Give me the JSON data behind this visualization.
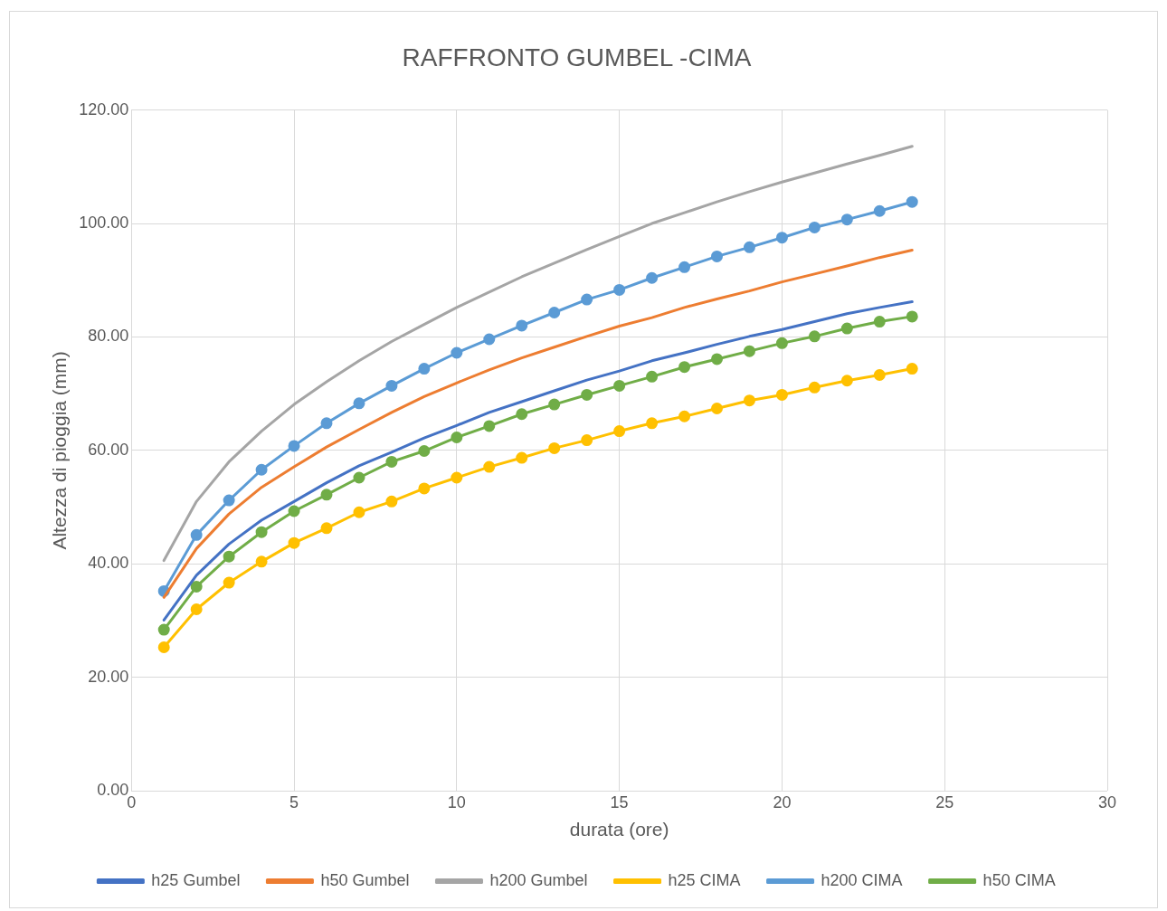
{
  "chart_data": {
    "type": "line",
    "title": "RAFFRONTO GUMBEL -CIMA",
    "xlabel": "durata (ore)",
    "ylabel": "Altezza di pioggia (mm)",
    "x": [
      1,
      2,
      3,
      4,
      5,
      6,
      7,
      8,
      9,
      10,
      11,
      12,
      13,
      14,
      15,
      16,
      17,
      18,
      19,
      20,
      21,
      22,
      23,
      24
    ],
    "xlim": [
      0,
      30
    ],
    "xticks": [
      0,
      5,
      10,
      15,
      20,
      25,
      30
    ],
    "ylim": [
      0,
      120
    ],
    "yticks": [
      {
        "value": 0,
        "label": "0.00"
      },
      {
        "value": 20,
        "label": "20.00"
      },
      {
        "value": 40,
        "label": "40.00"
      },
      {
        "value": 60,
        "label": "60.00"
      },
      {
        "value": 80,
        "label": "80.00"
      },
      {
        "value": 100,
        "label": "100.00"
      },
      {
        "value": 120,
        "label": "120.00"
      }
    ],
    "grid": true,
    "legend": "bottom",
    "series": [
      {
        "name": "h25 Gumbel",
        "color": "#4472c4",
        "marker": "none",
        "values": [
          30.1,
          38.0,
          43.5,
          47.7,
          51.0,
          54.3,
          57.3,
          59.7,
          62.2,
          64.4,
          66.7,
          68.6,
          70.5,
          72.4,
          74.0,
          75.8,
          77.2,
          78.7,
          80.1,
          81.3,
          82.7,
          84.1,
          85.2,
          86.2
        ]
      },
      {
        "name": "h50 Gumbel",
        "color": "#ed7d31",
        "marker": "none",
        "values": [
          34.1,
          42.7,
          48.8,
          53.5,
          57.1,
          60.6,
          63.7,
          66.7,
          69.5,
          71.9,
          74.2,
          76.3,
          78.2,
          80.1,
          81.9,
          83.4,
          85.2,
          86.7,
          88.1,
          89.7,
          91.1,
          92.5,
          94.0,
          95.3
        ]
      },
      {
        "name": "h200 Gumbel",
        "color": "#a5a5a5",
        "marker": "none",
        "values": [
          40.6,
          51.0,
          58.0,
          63.4,
          68.1,
          72.1,
          75.8,
          79.2,
          82.2,
          85.2,
          87.9,
          90.6,
          93.0,
          95.4,
          97.7,
          100.0,
          101.9,
          103.8,
          105.6,
          107.3,
          108.9,
          110.5,
          112.0,
          113.6
        ]
      },
      {
        "name": "h25 CIMA",
        "color": "#ffc000",
        "marker": "circle",
        "values": [
          25.3,
          32.0,
          36.7,
          40.4,
          43.7,
          46.3,
          49.1,
          51.0,
          53.3,
          55.2,
          57.1,
          58.7,
          60.4,
          61.8,
          63.4,
          64.8,
          66.0,
          67.4,
          68.8,
          69.8,
          71.1,
          72.3,
          73.3,
          74.4
        ]
      },
      {
        "name": "h200 CIMA",
        "color": "#5b9bd5",
        "marker": "circle",
        "values": [
          35.2,
          45.1,
          51.2,
          56.6,
          60.8,
          64.8,
          68.3,
          71.4,
          74.4,
          77.2,
          79.6,
          82.0,
          84.3,
          86.6,
          88.3,
          90.4,
          92.3,
          94.2,
          95.8,
          97.5,
          99.3,
          100.7,
          102.2,
          103.8
        ]
      },
      {
        "name": "h50 CIMA",
        "color": "#70ad47",
        "marker": "circle",
        "values": [
          28.4,
          36.0,
          41.3,
          45.6,
          49.3,
          52.2,
          55.2,
          58.0,
          59.9,
          62.3,
          64.3,
          66.4,
          68.1,
          69.8,
          71.4,
          73.0,
          74.7,
          76.1,
          77.5,
          78.9,
          80.1,
          81.5,
          82.7,
          83.6
        ]
      }
    ]
  }
}
